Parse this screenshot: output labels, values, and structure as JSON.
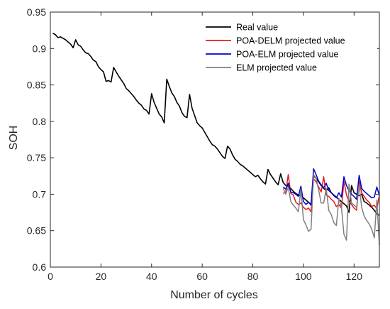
{
  "chart_data": {
    "type": "line",
    "title": "",
    "xlabel": "Number of cycles",
    "ylabel": "SOH",
    "xlim": [
      0,
      130
    ],
    "ylim": [
      0.6,
      0.95
    ],
    "xticks": [
      0,
      20,
      40,
      60,
      80,
      100,
      120
    ],
    "xtick_labels": [
      "0",
      "20",
      "40",
      "60",
      "80",
      "100",
      "120"
    ],
    "yticks": [
      0.6,
      0.65,
      0.7,
      0.75,
      0.8,
      0.85,
      0.9,
      0.95
    ],
    "ytick_labels": [
      "0.6",
      "0.65",
      "0.7",
      "0.75",
      "0.8",
      "0.85",
      "0.9",
      "0.95"
    ],
    "grid": false,
    "legend_position": "top-right",
    "series": [
      {
        "name": "Real value",
        "color": "#000000",
        "x": [
          1,
          2,
          3,
          4,
          5,
          6,
          7,
          8,
          9,
          10,
          11,
          12,
          13,
          14,
          15,
          16,
          17,
          18,
          19,
          20,
          21,
          22,
          23,
          24,
          25,
          26,
          27,
          28,
          29,
          30,
          31,
          32,
          33,
          34,
          35,
          36,
          37,
          38,
          39,
          40,
          41,
          42,
          43,
          44,
          45,
          46,
          47,
          48,
          49,
          50,
          51,
          52,
          53,
          54,
          55,
          56,
          57,
          58,
          59,
          60,
          61,
          62,
          63,
          64,
          65,
          66,
          67,
          68,
          69,
          70,
          71,
          72,
          73,
          74,
          75,
          76,
          77,
          78,
          79,
          80,
          81,
          82,
          83,
          84,
          85,
          86,
          87,
          88,
          89,
          90,
          91,
          92,
          93,
          94,
          95,
          96,
          97,
          98,
          99,
          100,
          101,
          102,
          103,
          104,
          105,
          106,
          107,
          108,
          109,
          110,
          111,
          112,
          113,
          114,
          115,
          116,
          117,
          118,
          119,
          120,
          121,
          122,
          123,
          124,
          125,
          126,
          127,
          128,
          129,
          130
        ],
        "y": [
          0.921,
          0.919,
          0.915,
          0.916,
          0.914,
          0.912,
          0.909,
          0.906,
          0.901,
          0.912,
          0.905,
          0.903,
          0.898,
          0.894,
          0.893,
          0.889,
          0.884,
          0.882,
          0.875,
          0.871,
          0.868,
          0.855,
          0.856,
          0.854,
          0.874,
          0.868,
          0.862,
          0.857,
          0.852,
          0.845,
          0.842,
          0.838,
          0.834,
          0.829,
          0.825,
          0.822,
          0.817,
          0.815,
          0.81,
          0.838,
          0.826,
          0.818,
          0.81,
          0.806,
          0.798,
          0.858,
          0.848,
          0.839,
          0.834,
          0.826,
          0.821,
          0.812,
          0.807,
          0.805,
          0.837,
          0.818,
          0.808,
          0.798,
          0.794,
          0.791,
          0.785,
          0.779,
          0.773,
          0.768,
          0.766,
          0.762,
          0.757,
          0.752,
          0.749,
          0.766,
          0.762,
          0.754,
          0.748,
          0.745,
          0.741,
          0.739,
          0.736,
          0.733,
          0.73,
          0.727,
          0.724,
          0.726,
          0.721,
          0.717,
          0.714,
          0.734,
          0.727,
          0.722,
          0.717,
          0.713,
          0.728,
          0.716,
          0.712,
          0.711,
          0.708,
          0.704,
          0.701,
          0.699,
          0.698,
          0.695,
          0.692,
          0.689,
          0.686,
          0.725,
          0.722,
          0.717,
          0.712,
          0.708,
          0.705,
          0.709,
          0.702,
          0.699,
          0.696,
          0.693,
          0.69,
          0.687,
          0.684,
          0.675,
          0.712,
          0.702,
          0.7,
          0.698,
          0.7,
          0.69,
          0.688,
          0.685,
          0.682,
          0.678,
          0.673,
          0.671
        ]
      },
      {
        "name": "POA-DELM projected value",
        "color": "#e41a1c",
        "x": [
          92,
          93,
          94,
          95,
          96,
          97,
          98,
          99,
          100,
          101,
          102,
          103,
          104,
          105,
          106,
          107,
          108,
          109,
          110,
          111,
          112,
          113,
          114,
          115,
          116,
          117,
          118,
          119,
          120,
          121,
          122,
          123,
          124,
          125,
          126,
          127,
          128,
          129,
          130
        ],
        "y": [
          0.701,
          0.703,
          0.727,
          0.701,
          0.699,
          0.689,
          0.686,
          0.688,
          0.682,
          0.679,
          0.681,
          0.676,
          0.721,
          0.717,
          0.71,
          0.703,
          0.724,
          0.699,
          0.697,
          0.693,
          0.69,
          0.683,
          0.686,
          0.681,
          0.718,
          0.699,
          0.69,
          0.686,
          0.681,
          0.678,
          0.718,
          0.702,
          0.697,
          0.692,
          0.689,
          0.683,
          0.685,
          0.68,
          0.699
        ]
      },
      {
        "name": "POA-ELM projected value",
        "color": "#0000cd",
        "x": [
          92,
          93,
          94,
          95,
          96,
          97,
          98,
          99,
          100,
          101,
          102,
          103,
          104,
          105,
          106,
          107,
          108,
          109,
          110,
          111,
          112,
          113,
          114,
          115,
          116,
          117,
          118,
          119,
          120,
          121,
          122,
          123,
          124,
          125,
          126,
          127,
          128,
          129,
          130
        ],
        "y": [
          0.71,
          0.707,
          0.715,
          0.703,
          0.702,
          0.7,
          0.697,
          0.711,
          0.69,
          0.686,
          0.689,
          0.685,
          0.735,
          0.727,
          0.718,
          0.713,
          0.709,
          0.715,
          0.705,
          0.702,
          0.698,
          0.695,
          0.702,
          0.696,
          0.724,
          0.712,
          0.705,
          0.7,
          0.697,
          0.693,
          0.726,
          0.708,
          0.704,
          0.701,
          0.698,
          0.695,
          0.696,
          0.71,
          0.698
        ]
      },
      {
        "name": "ELM projected value",
        "color": "#808080",
        "x": [
          92,
          93,
          94,
          95,
          96,
          97,
          98,
          99,
          100,
          101,
          102,
          103,
          104,
          105,
          106,
          107,
          108,
          109,
          110,
          111,
          112,
          113,
          114,
          115,
          116,
          117,
          118,
          119,
          120,
          121,
          122,
          123,
          124,
          125,
          126,
          127,
          128,
          129,
          130
        ],
        "y": [
          0.708,
          0.7,
          0.71,
          0.69,
          0.685,
          0.681,
          0.676,
          0.707,
          0.665,
          0.658,
          0.649,
          0.652,
          0.727,
          0.722,
          0.706,
          0.688,
          0.688,
          0.708,
          0.678,
          0.672,
          0.661,
          0.657,
          0.694,
          0.683,
          0.645,
          0.637,
          0.714,
          0.688,
          0.685,
          0.682,
          0.713,
          0.682,
          0.67,
          0.664,
          0.659,
          0.652,
          0.64,
          0.692,
          0.63
        ]
      }
    ]
  }
}
